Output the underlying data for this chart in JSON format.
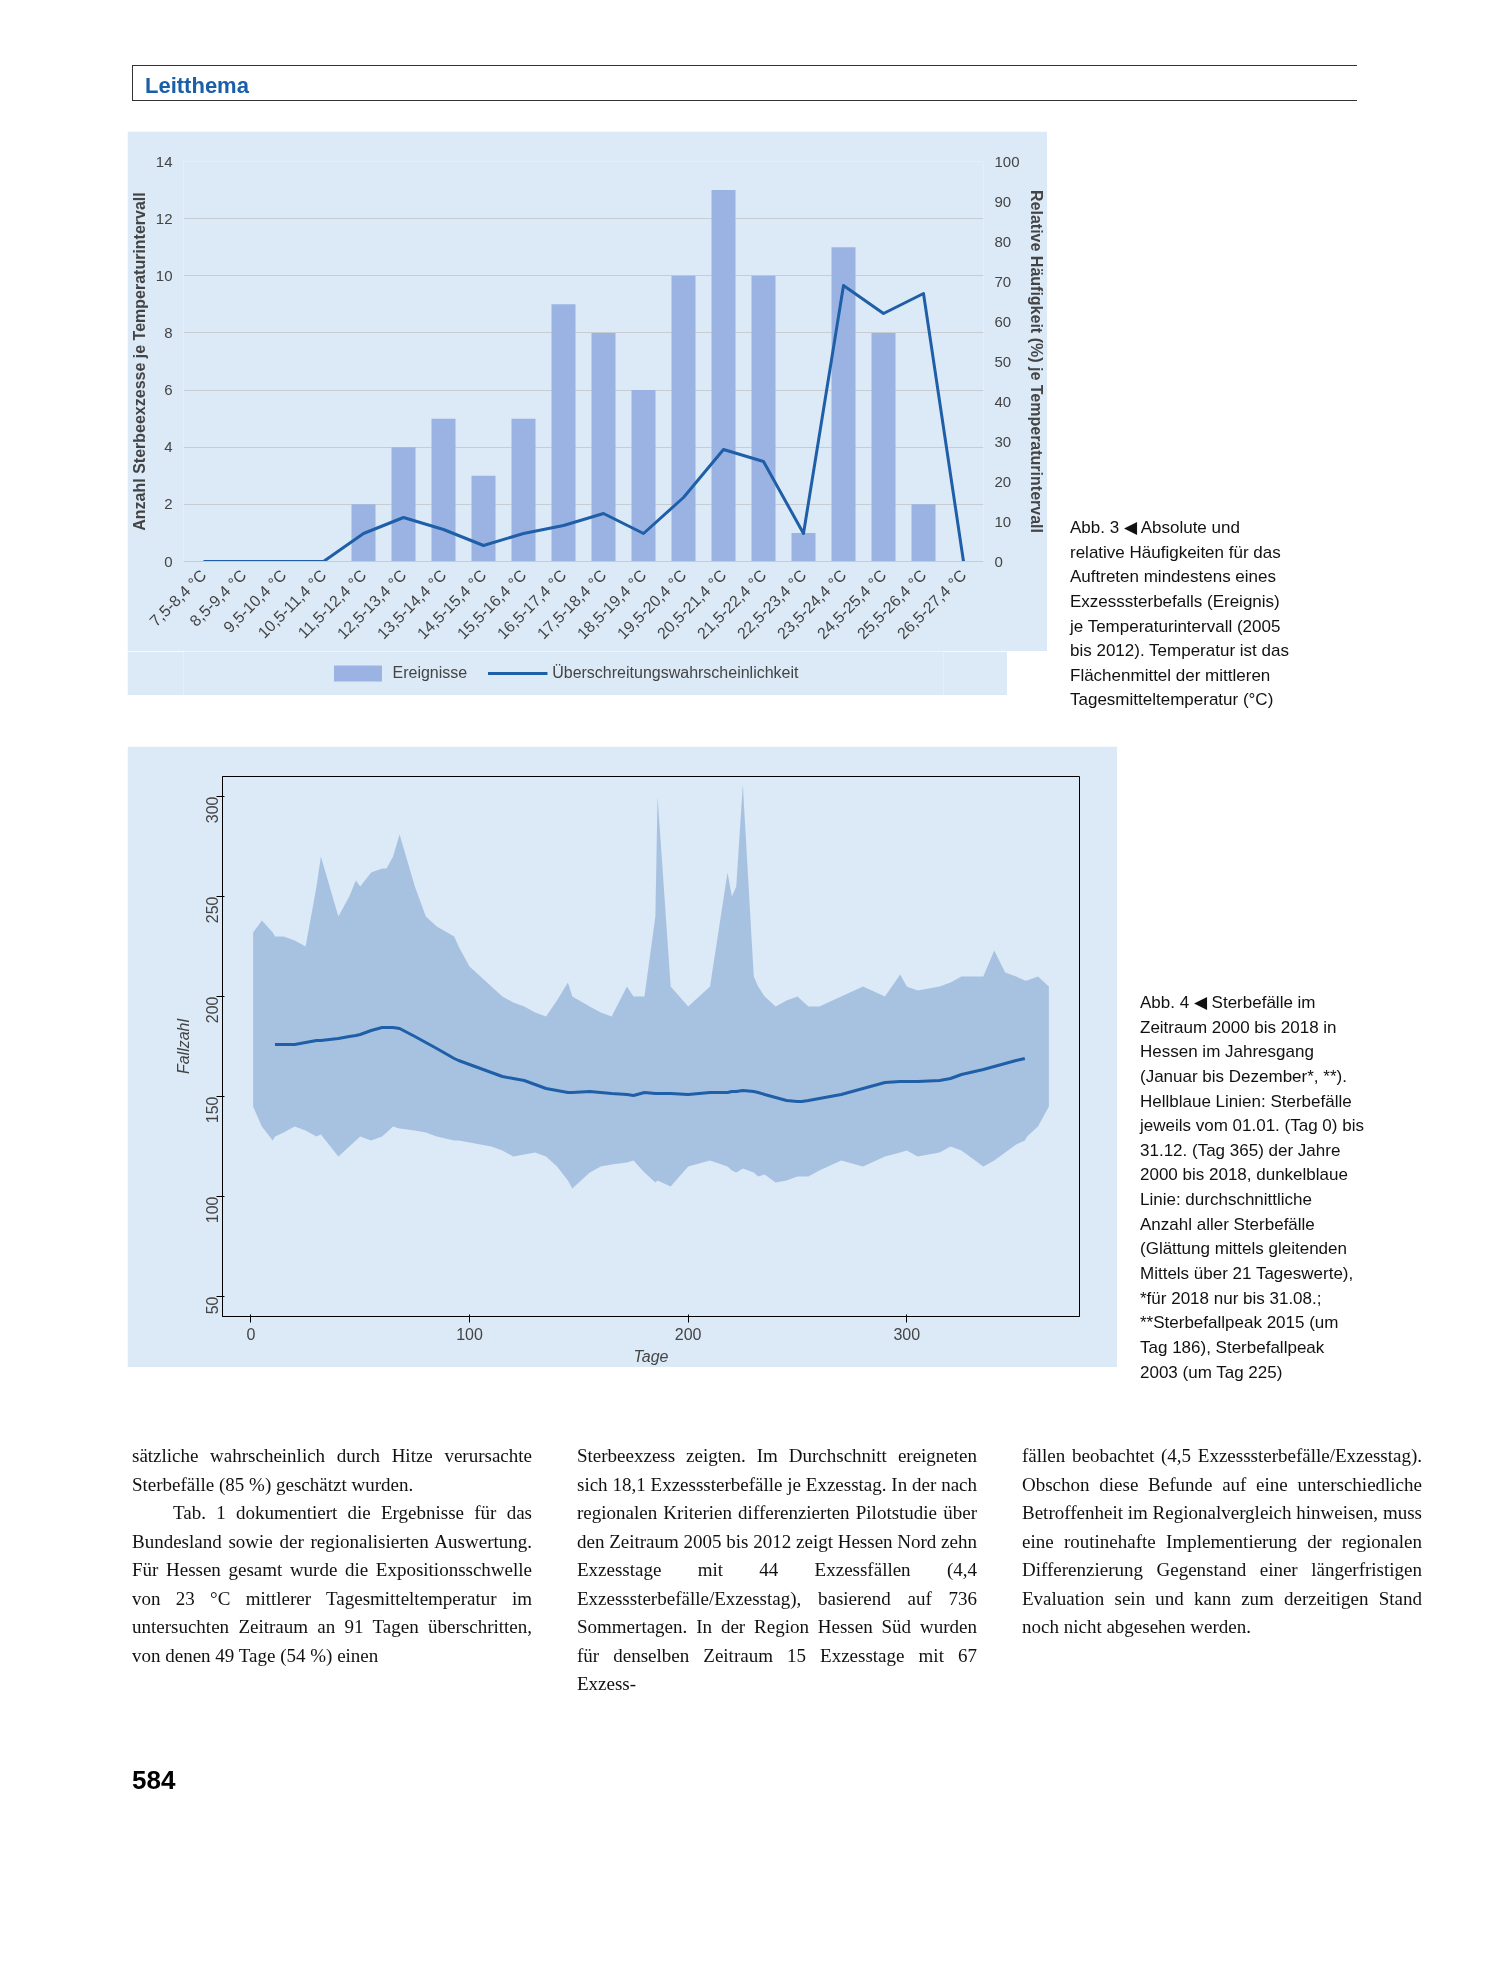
{
  "chart_data": [
    {
      "type": "bar",
      "annotations": [
        "Leitthema",
        "Abb. 3 ◀ Absolute und relative Häufigkeiten für das Auftreten mindestens eines Exzesssterbefalls (Ereignis) je Temperaturintervall (2005 bis 2012). Temperatur ist das Flächenmittel der mittleren Tagesmitteltemperatur (°C)"
      ],
      "ylabel": "Anzahl Sterbeexzesse je Temperaturintervall",
      "y2label": "Relative Häufigkeit (%) je Temperaturintervall",
      "categories": [
        "7,5-8,4 °C",
        "8,5-9,4 °C",
        "9,5-10,4 °C",
        "10,5-11,4 °C",
        "11,5-12,4 °C",
        "12,5-13,4 °C",
        "13,5-14,4 °C",
        "14,5-15,4 °C",
        "15,5-16,4 °C",
        "16,5-17,4 °C",
        "17,5-18,4 °C",
        "18,5-19,4 °C",
        "19,5-20,4 °C",
        "20,5-21,4 °C",
        "21,5-22,4 °C",
        "22,5-23,4 °C",
        "23,5-24,4 °C",
        "24,5-25,4 °C",
        "25,5-26,4 °C",
        "26,5-27,4 °C"
      ],
      "series": [
        {
          "name": "Ereignisse",
          "type": "bar",
          "color": "#9bb3e3",
          "values": [
            0,
            0,
            0,
            0,
            2,
            4,
            5,
            3,
            5,
            9,
            8,
            6,
            10,
            13,
            10,
            1,
            11,
            8,
            2,
            0
          ]
        },
        {
          "name": "Überschreitungswahrscheinlichkeit",
          "type": "line",
          "axis": "y2",
          "color": "#1f5fa8",
          "values": [
            0,
            0,
            0,
            0,
            7,
            11,
            8,
            4,
            7,
            9,
            12,
            7,
            16,
            28,
            25,
            7,
            69,
            62,
            67,
            0
          ]
        }
      ],
      "ylim": [
        0,
        14
      ],
      "yticks": [
        0,
        2,
        4,
        6,
        8,
        10,
        12,
        14
      ],
      "y2lim": [
        0,
        100
      ],
      "y2ticks": [
        0,
        10,
        20,
        30,
        40,
        50,
        60,
        70,
        80,
        90,
        100
      ],
      "grid": "y",
      "legend": "bottom",
      "marker": "none",
      "line_style": "solid"
    },
    {
      "type": "line",
      "xlabel": "Tage",
      "ylabel": "Fallzahl",
      "annotations": [
        "Abb. 4 ◀ Sterbefälle im Zeitraum 2000 bis 2018 in Hessen im Jahresgang (Januar bis Dezember*, **). Hellblaue Linien: Sterbefälle jeweils vom 01.01. (Tag 0) bis 31.12. (Tag 365) der Jahre 2000 bis 2018, dunkelblaue Linie: durchschnittliche Anzahl aller Sterbefälle (Glättung mittels gleitenden Mittels über 21 Tageswerte), *für 2018 nur bis 31.08.; **Sterbefallpeak 2015 (um Tag 186), Sterbefallpeak 2003 (um Tag 225)",
        "sätzliche wahrscheinlich durch Hitze verursachte Sterbefälle (85 %) geschätzt wurden.\nTab. 1 dokumentiert die Ergebnisse für das Bundesland sowie der regionalisierten Auswertung. Für Hessen gesamt wurde die Expositionsschwelle von 23 °C mittlerer Tagesmitteltemperatur im untersuchten Zeitraum an 91 Tagen überschritten, von denen 49 Tage (54 %) einen",
        "Sterbeexzess zeigten. Im Durchschnitt ereigneten sich 18,1 Exzesssterbefälle je Exzesstag. In der nach regionalen Kriterien differenzierten Pilotstudie über den Zeitraum 2005 bis 2012 zeigt Hessen Nord zehn Exzesstage mit 44 Exzessfällen (4,4 Exzesssterbefälle/Exzesstag), basierend auf 736 Sommertagen. In der Region Hessen Süd wurden für denselben Zeitraum 15 Exzesstage mit 67 Exzess-",
        "fällen beobachtet (4,5 Exzesssterbefälle/Exzesstag). Obschon diese Befunde auf eine unterschiedliche Betroffenheit im Regionalvergleich hinweisen, muss eine routinehafte Implementierung der regionalen Differenzierung Gegenstand einer längerfristigen Evaluation sein und kann zum derzeitigen Stand noch nicht abgesehen werden.",
        "584"
      ],
      "x": [
        1,
        5,
        10,
        11,
        15,
        20,
        25,
        30,
        32,
        40,
        45,
        48,
        50,
        55,
        60,
        62,
        65,
        68,
        75,
        80,
        85,
        93,
        95,
        100,
        105,
        110,
        115,
        120,
        125,
        130,
        135,
        140,
        145,
        147,
        155,
        160,
        165,
        172,
        175,
        180,
        185,
        186,
        192,
        200,
        210,
        218,
        220,
        222,
        225,
        230,
        232,
        235,
        240,
        245,
        250,
        252,
        255,
        260,
        270,
        280,
        290,
        297,
        300,
        305,
        315,
        320,
        325,
        335,
        340,
        345,
        350,
        354,
        355,
        360,
        365
      ],
      "series": [
        {
          "color": "#1f5fa8",
          "values": [
            null,
            null,
            null,
            176,
            176,
            176,
            177,
            178,
            178,
            179,
            180,
            180.5,
            181,
            183,
            184.5,
            184.5,
            184.5,
            184,
            180,
            177,
            174,
            169,
            168,
            166,
            164,
            162,
            160,
            159,
            158,
            156,
            154,
            153,
            152,
            152,
            152.5,
            152,
            151.5,
            151,
            150.5,
            152,
            151.5,
            151.5,
            151.5,
            151,
            152,
            152,
            152.5,
            152.5,
            153,
            152.5,
            152,
            151,
            149.5,
            148,
            147.5,
            147.5,
            148,
            149,
            151,
            154,
            157,
            157.5,
            157.5,
            157.5,
            158,
            159,
            161,
            163.5,
            165,
            166.5,
            168,
            169,
            null,
            null,
            null
          ],
          "lower": [
            145,
            135,
            128,
            130,
            132,
            135,
            133,
            130,
            131,
            120,
            125,
            128,
            130,
            128,
            130,
            132,
            135,
            134,
            133,
            132,
            130,
            128,
            128,
            127,
            126,
            125,
            123,
            120,
            121,
            122,
            120,
            115,
            108,
            104,
            112,
            115,
            116,
            117,
            118,
            112,
            107,
            108,
            105,
            115,
            118,
            115,
            113,
            112,
            114,
            112,
            110,
            111,
            107,
            108,
            110,
            110,
            110,
            113,
            118,
            115,
            120,
            122,
            123,
            120,
            122,
            125,
            123,
            115,
            118,
            122,
            126,
            128,
            130,
            135,
            145
          ],
          "upper": [
            232,
            238,
            232,
            230,
            230,
            228,
            225,
            255,
            270,
            240,
            250,
            258,
            255,
            262,
            264,
            264,
            270,
            281,
            255,
            240,
            235,
            230,
            225,
            215,
            210,
            205,
            200,
            197,
            195,
            192,
            190,
            198,
            207,
            200,
            195,
            192,
            190,
            205,
            200,
            200,
            240,
            300,
            205,
            195,
            205,
            262,
            250,
            255,
            306,
            210,
            205,
            200,
            195,
            198,
            200,
            198,
            195,
            195,
            200,
            205,
            200,
            211,
            205,
            203,
            205,
            207,
            210,
            210,
            223,
            212,
            210,
            208,
            208,
            210,
            205
          ]
        }
      ],
      "xlim": [
        -13,
        379
      ],
      "xticks": [
        0,
        100,
        200,
        300
      ],
      "ylim": [
        40,
        310
      ],
      "yticks": [
        50,
        100,
        150,
        200,
        250,
        300
      ],
      "grid": false,
      "legend": false,
      "marker": "none",
      "line_style": "solid"
    }
  ]
}
